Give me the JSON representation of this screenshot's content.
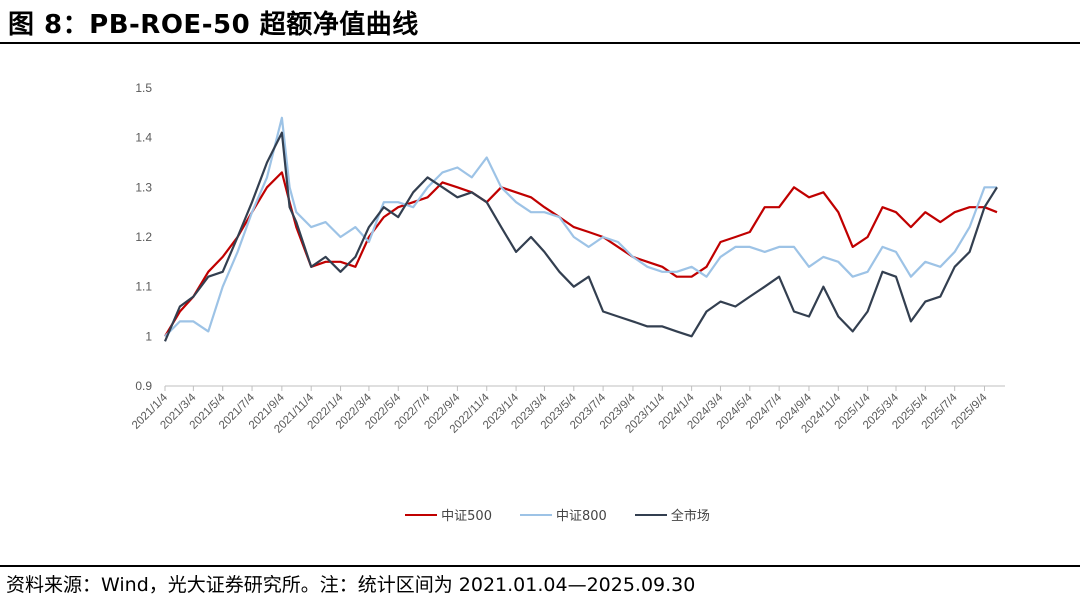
{
  "figure": {
    "title": "图 8：PB-ROE-50 超额净值曲线",
    "source": "资料来源：Wind，光大证券研究所。注：统计区间为 2021.01.04—2025.09.30"
  },
  "chart_data": {
    "type": "line",
    "title": "",
    "xlabel": "",
    "ylabel": "",
    "ylim": [
      0.9,
      1.5
    ],
    "yticks": [
      "0.9",
      "1",
      "1.1",
      "1.2",
      "1.3",
      "1.4",
      "1.5"
    ],
    "xlim": [
      "2021/1/4",
      "2025/9/30"
    ],
    "xticks": [
      "2021/1/4",
      "2021/3/4",
      "2021/5/4",
      "2021/7/4",
      "2021/9/4",
      "2021/11/4",
      "2022/1/4",
      "2022/3/4",
      "2022/5/4",
      "2022/7/4",
      "2022/9/4",
      "2022/11/4",
      "2023/1/4",
      "2023/3/4",
      "2023/5/4",
      "2023/7/4",
      "2023/9/4",
      "2023/11/4",
      "2024/1/4",
      "2024/3/4",
      "2024/5/4",
      "2024/7/4",
      "2024/9/4",
      "2024/11/4",
      "2025/1/4",
      "2025/3/4",
      "2025/5/4",
      "2025/7/4",
      "2025/9/4"
    ],
    "grid": false,
    "legend_position": "bottom",
    "colors": {
      "中证500": "#c00000",
      "中证800": "#9dc3e6",
      "全市场": "#333f50"
    },
    "series": [
      {
        "name": "中证500",
        "x": [
          "2021/1/4",
          "2021/2/4",
          "2021/3/4",
          "2021/4/4",
          "2021/5/4",
          "2021/6/4",
          "2021/7/4",
          "2021/8/4",
          "2021/9/4",
          "2021/9/20",
          "2021/10/4",
          "2021/11/4",
          "2021/12/4",
          "2022/1/4",
          "2022/2/4",
          "2022/3/4",
          "2022/4/4",
          "2022/5/4",
          "2022/6/4",
          "2022/7/4",
          "2022/8/4",
          "2022/9/4",
          "2022/10/4",
          "2022/11/4",
          "2022/12/4",
          "2023/1/4",
          "2023/2/4",
          "2023/3/4",
          "2023/4/4",
          "2023/5/4",
          "2023/6/4",
          "2023/7/4",
          "2023/8/4",
          "2023/9/4",
          "2023/10/4",
          "2023/11/4",
          "2023/12/4",
          "2024/1/4",
          "2024/2/4",
          "2024/3/4",
          "2024/4/4",
          "2024/5/4",
          "2024/6/4",
          "2024/7/4",
          "2024/8/4",
          "2024/9/4",
          "2024/10/4",
          "2024/11/4",
          "2024/12/4",
          "2025/1/4",
          "2025/2/4",
          "2025/3/4",
          "2025/4/4",
          "2025/5/4",
          "2025/6/4",
          "2025/7/4",
          "2025/8/4",
          "2025/9/4",
          "2025/9/30"
        ],
        "values": [
          1.0,
          1.05,
          1.08,
          1.13,
          1.16,
          1.2,
          1.25,
          1.3,
          1.33,
          1.27,
          1.22,
          1.14,
          1.15,
          1.15,
          1.14,
          1.2,
          1.24,
          1.26,
          1.27,
          1.28,
          1.31,
          1.3,
          1.29,
          1.27,
          1.3,
          1.29,
          1.28,
          1.26,
          1.24,
          1.22,
          1.21,
          1.2,
          1.18,
          1.16,
          1.15,
          1.14,
          1.12,
          1.12,
          1.14,
          1.19,
          1.2,
          1.21,
          1.26,
          1.26,
          1.3,
          1.28,
          1.29,
          1.25,
          1.18,
          1.2,
          1.26,
          1.25,
          1.22,
          1.25,
          1.23,
          1.25,
          1.26,
          1.26,
          1.25
        ]
      },
      {
        "name": "中证800",
        "x": [
          "2021/1/4",
          "2021/2/4",
          "2021/3/4",
          "2021/4/4",
          "2021/5/4",
          "2021/6/4",
          "2021/7/4",
          "2021/8/4",
          "2021/9/4",
          "2021/9/20",
          "2021/10/4",
          "2021/11/4",
          "2021/12/4",
          "2022/1/4",
          "2022/2/4",
          "2022/3/4",
          "2022/4/4",
          "2022/5/4",
          "2022/6/4",
          "2022/7/4",
          "2022/8/4",
          "2022/9/4",
          "2022/10/4",
          "2022/11/4",
          "2022/12/4",
          "2023/1/4",
          "2023/2/4",
          "2023/3/4",
          "2023/4/4",
          "2023/5/4",
          "2023/6/4",
          "2023/7/4",
          "2023/8/4",
          "2023/9/4",
          "2023/10/4",
          "2023/11/4",
          "2023/12/4",
          "2024/1/4",
          "2024/2/4",
          "2024/3/4",
          "2024/4/4",
          "2024/5/4",
          "2024/6/4",
          "2024/7/4",
          "2024/8/4",
          "2024/9/4",
          "2024/10/4",
          "2024/11/4",
          "2024/12/4",
          "2025/1/4",
          "2025/2/4",
          "2025/3/4",
          "2025/4/4",
          "2025/5/4",
          "2025/6/4",
          "2025/7/4",
          "2025/8/4",
          "2025/9/4",
          "2025/9/30"
        ],
        "values": [
          1.0,
          1.03,
          1.03,
          1.01,
          1.1,
          1.17,
          1.25,
          1.32,
          1.44,
          1.3,
          1.25,
          1.22,
          1.23,
          1.2,
          1.22,
          1.19,
          1.27,
          1.27,
          1.26,
          1.3,
          1.33,
          1.34,
          1.32,
          1.36,
          1.3,
          1.27,
          1.25,
          1.25,
          1.24,
          1.2,
          1.18,
          1.2,
          1.19,
          1.16,
          1.14,
          1.13,
          1.13,
          1.14,
          1.12,
          1.16,
          1.18,
          1.18,
          1.17,
          1.18,
          1.18,
          1.14,
          1.16,
          1.15,
          1.12,
          1.13,
          1.18,
          1.17,
          1.12,
          1.15,
          1.14,
          1.17,
          1.22,
          1.3,
          1.3
        ]
      },
      {
        "name": "全市场",
        "x": [
          "2021/1/4",
          "2021/2/4",
          "2021/3/4",
          "2021/4/4",
          "2021/5/4",
          "2021/6/4",
          "2021/7/4",
          "2021/8/4",
          "2021/9/4",
          "2021/9/20",
          "2021/10/4",
          "2021/11/4",
          "2021/12/4",
          "2022/1/4",
          "2022/2/4",
          "2022/3/4",
          "2022/4/4",
          "2022/5/4",
          "2022/6/4",
          "2022/7/4",
          "2022/8/4",
          "2022/9/4",
          "2022/10/4",
          "2022/11/4",
          "2022/12/4",
          "2023/1/4",
          "2023/2/4",
          "2023/3/4",
          "2023/4/4",
          "2023/5/4",
          "2023/6/4",
          "2023/7/4",
          "2023/8/4",
          "2023/9/4",
          "2023/10/4",
          "2023/11/4",
          "2023/12/4",
          "2024/1/4",
          "2024/2/4",
          "2024/3/4",
          "2024/4/4",
          "2024/5/4",
          "2024/6/4",
          "2024/7/4",
          "2024/8/4",
          "2024/9/4",
          "2024/10/4",
          "2024/11/4",
          "2024/12/4",
          "2025/1/4",
          "2025/2/4",
          "2025/3/4",
          "2025/4/4",
          "2025/5/4",
          "2025/6/4",
          "2025/7/4",
          "2025/8/4",
          "2025/9/4",
          "2025/9/30"
        ],
        "values": [
          0.99,
          1.06,
          1.08,
          1.12,
          1.13,
          1.2,
          1.27,
          1.35,
          1.41,
          1.26,
          1.23,
          1.14,
          1.16,
          1.13,
          1.16,
          1.22,
          1.26,
          1.24,
          1.29,
          1.32,
          1.3,
          1.28,
          1.29,
          1.27,
          1.22,
          1.17,
          1.2,
          1.17,
          1.13,
          1.1,
          1.12,
          1.05,
          1.04,
          1.03,
          1.02,
          1.02,
          1.01,
          1.0,
          1.05,
          1.07,
          1.06,
          1.08,
          1.1,
          1.12,
          1.05,
          1.04,
          1.1,
          1.04,
          1.01,
          1.05,
          1.13,
          1.12,
          1.03,
          1.07,
          1.08,
          1.14,
          1.17,
          1.26,
          1.3
        ]
      }
    ]
  }
}
